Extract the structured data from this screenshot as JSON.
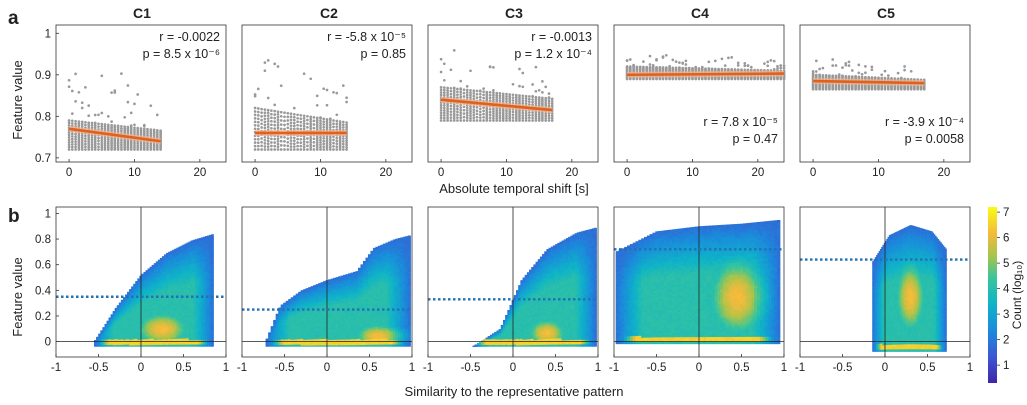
{
  "figure": {
    "panel_a_letter": "a",
    "panel_b_letter": "b",
    "column_titles": [
      "C1",
      "C2",
      "C3",
      "C4",
      "C5"
    ],
    "colorbar": {
      "label": "Count (log₁₀)",
      "ticks": [
        1,
        2,
        3,
        4,
        5,
        6,
        7
      ]
    },
    "colors": {
      "scatter_points": "#999999",
      "fit_line": "#e0601c",
      "fit_band": "#f2b48f",
      "threshold_line": "#2271b5"
    }
  },
  "chart_data": [
    {
      "type": "scatter",
      "panel": "a",
      "ylabel": "Feature value",
      "xlabel": "Absolute temporal shift [s]",
      "xlim": [
        -2,
        24
      ],
      "ylim": [
        0.69,
        1.02
      ],
      "xticks": [
        0,
        10,
        20
      ],
      "yticks": [
        0.7,
        0.8,
        0.9,
        1
      ],
      "yticklabels": [
        "0.7",
        "0.8",
        "0.9",
        "1"
      ],
      "series": [
        {
          "name": "C1",
          "x_max": 14,
          "y_floor": 0.72,
          "y_typical_top": 0.79,
          "outlier_max": 0.98,
          "fit": [
            [
              0,
              0.77
            ],
            [
              14,
              0.74
            ]
          ],
          "stat_r": "r = -0.0022",
          "stat_p": "p = 8.5 x 10⁻⁶",
          "stat_position": "top"
        },
        {
          "name": "C2",
          "x_max": 14,
          "y_floor": 0.72,
          "y_typical_top": 0.82,
          "outlier_max": 1.0,
          "fit": [
            [
              0,
              0.76
            ],
            [
              14,
              0.76
            ]
          ],
          "stat_r": "r = -5.8 x 10⁻⁵",
          "stat_p": "p = 0.85",
          "stat_position": "top"
        },
        {
          "name": "C3",
          "x_max": 17,
          "y_floor": 0.79,
          "y_typical_top": 0.87,
          "outlier_max": 0.98,
          "fit": [
            [
              0,
              0.84
            ],
            [
              17,
              0.815
            ]
          ],
          "stat_r": "r = -0.0013",
          "stat_p": "p = 1.2 x 10⁻⁴",
          "stat_position": "top"
        },
        {
          "name": "C4",
          "x_max": 24,
          "y_floor": 0.89,
          "y_typical_top": 0.92,
          "outlier_max": 0.96,
          "fit": [
            [
              0,
              0.9
            ],
            [
              24,
              0.903
            ]
          ],
          "stat_r": "r = 7.8 x 10⁻⁵",
          "stat_p": "p = 0.47",
          "stat_position": "bottom"
        },
        {
          "name": "C5",
          "x_max": 17,
          "y_floor": 0.865,
          "y_typical_top": 0.9,
          "outlier_max": 0.945,
          "fit": [
            [
              0,
              0.885
            ],
            [
              17,
              0.88
            ]
          ],
          "stat_r": "r = -3.9 x 10⁻⁴",
          "stat_p": "p = 0.0058",
          "stat_position": "bottom"
        }
      ]
    },
    {
      "type": "heatmap",
      "panel": "b",
      "ylabel": "Feature value",
      "xlabel": "Similarity to the representative pattern",
      "xlim": [
        -1,
        1
      ],
      "ylim": [
        -0.12,
        1.05
      ],
      "xticks": [
        -1,
        -0.5,
        0,
        0.5,
        1
      ],
      "xticklabels": [
        "-1",
        "-0.5",
        "0",
        "0.5",
        "1"
      ],
      "yticks": [
        0,
        0.2,
        0.4,
        0.6,
        0.8,
        1
      ],
      "yticklabels": [
        "0",
        "0.2",
        "0.4",
        "0.6",
        "0.8",
        "1"
      ],
      "color_scale_log10": [
        0.3,
        7.2
      ],
      "series": [
        {
          "name": "C1",
          "x_range": [
            -0.55,
            0.85
          ],
          "upper_edge": [
            [
              -0.55,
              0.0
            ],
            [
              -0.3,
              0.26
            ],
            [
              0,
              0.52
            ],
            [
              0.3,
              0.69
            ],
            [
              0.6,
              0.79
            ],
            [
              0.85,
              0.84
            ]
          ],
          "dense_center": [
            0.25,
            0.1
          ],
          "dense_spread": [
            0.28,
            0.12
          ],
          "bottom_band": 0.0,
          "threshold": 0.35
        },
        {
          "name": "C2",
          "x_range": [
            -0.72,
            0.98
          ],
          "upper_edge": [
            [
              -0.72,
              0.0
            ],
            [
              -0.55,
              0.28
            ],
            [
              -0.3,
              0.4
            ],
            [
              0,
              0.48
            ],
            [
              0.35,
              0.55
            ],
            [
              0.55,
              0.73
            ],
            [
              0.8,
              0.8
            ],
            [
              0.98,
              0.83
            ]
          ],
          "dense_center": [
            0.6,
            0.05
          ],
          "dense_spread": [
            0.25,
            0.08
          ],
          "bottom_band": 0.0,
          "threshold": 0.25
        },
        {
          "name": "C3",
          "x_range": [
            -0.5,
            0.98
          ],
          "upper_edge": [
            [
              -0.5,
              -0.05
            ],
            [
              -0.15,
              0.1
            ],
            [
              0.1,
              0.48
            ],
            [
              0.4,
              0.72
            ],
            [
              0.75,
              0.85
            ],
            [
              0.98,
              0.89
            ]
          ],
          "dense_center": [
            0.4,
            0.07
          ],
          "dense_spread": [
            0.2,
            0.1
          ],
          "bottom_band": 0.0,
          "threshold": 0.33
        },
        {
          "name": "C4",
          "x_range": [
            -0.98,
            0.95
          ],
          "upper_edge": [
            [
              -0.98,
              0.7
            ],
            [
              -0.5,
              0.86
            ],
            [
              0,
              0.9
            ],
            [
              0.5,
              0.92
            ],
            [
              0.95,
              0.95
            ]
          ],
          "dense_center": [
            0.45,
            0.35
          ],
          "dense_spread": [
            0.3,
            0.28
          ],
          "bottom_band": 0.02,
          "threshold": 0.72
        },
        {
          "name": "C5",
          "x_range": [
            -0.15,
            0.72
          ],
          "upper_edge": [
            [
              -0.15,
              0.62
            ],
            [
              0.05,
              0.83
            ],
            [
              0.3,
              0.91
            ],
            [
              0.55,
              0.86
            ],
            [
              0.72,
              0.72
            ]
          ],
          "dense_center": [
            0.3,
            0.35
          ],
          "dense_spread": [
            0.16,
            0.25
          ],
          "bottom_band": -0.04,
          "threshold": 0.64
        }
      ]
    }
  ]
}
